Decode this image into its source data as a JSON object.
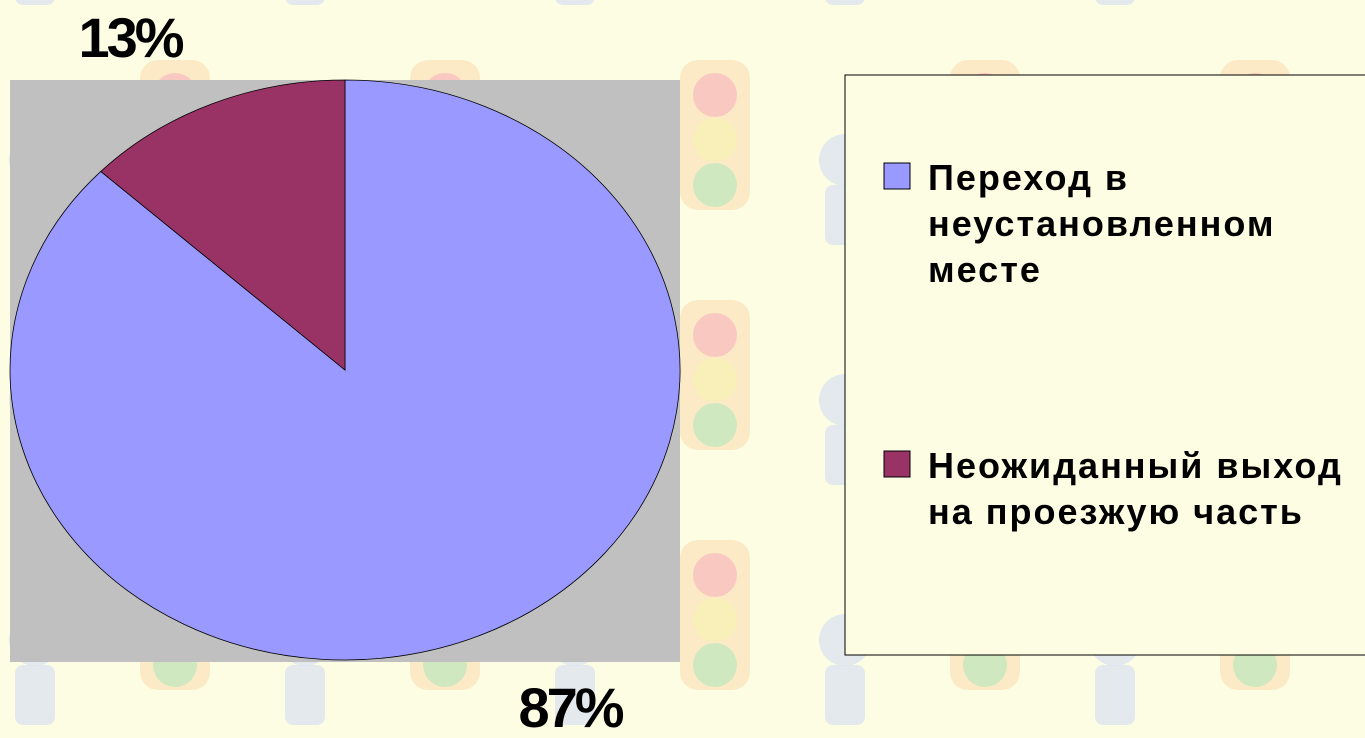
{
  "chart_data": {
    "type": "pie",
    "categories": [
      "Переход в неустановленном месте",
      "Неожиданный выход на проезжую часть"
    ],
    "values": [
      87,
      13
    ],
    "value_labels": [
      "87%",
      "13%"
    ],
    "colors": [
      "#9999ff",
      "#993366"
    ]
  }
}
